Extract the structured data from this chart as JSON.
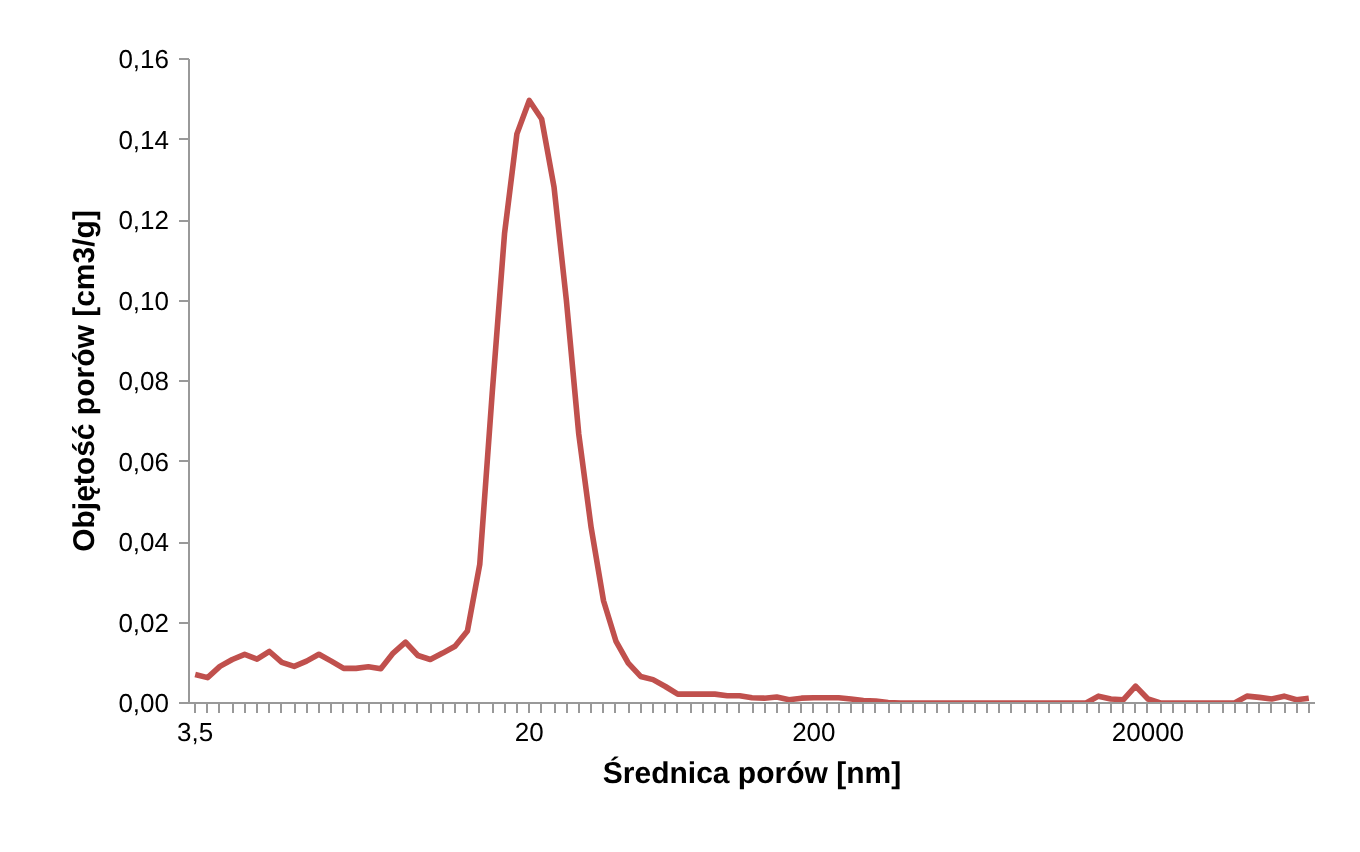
{
  "chart_data": {
    "type": "line",
    "xlabel": "Średnica porów [nm]",
    "ylabel": "Objętość porów [cm3/g]",
    "categories": [
      "3,5",
      null,
      null,
      null,
      null,
      null,
      null,
      null,
      null,
      null,
      null,
      null,
      null,
      null,
      null,
      null,
      null,
      null,
      null,
      null,
      null,
      null,
      null,
      null,
      null,
      null,
      null,
      "20",
      null,
      null,
      null,
      null,
      null,
      null,
      null,
      null,
      null,
      null,
      null,
      null,
      null,
      null,
      null,
      null,
      null,
      null,
      null,
      null,
      null,
      null,
      "200",
      null,
      null,
      null,
      null,
      null,
      null,
      null,
      null,
      null,
      null,
      null,
      null,
      null,
      null,
      null,
      null,
      null,
      null,
      null,
      null,
      null,
      null,
      null,
      null,
      null,
      null,
      "20000",
      null,
      null,
      null,
      null,
      null,
      null,
      null,
      null,
      null,
      null,
      null,
      null,
      null
    ],
    "series": [
      {
        "color": "#c0504d",
        "values": [
          0.0071,
          0.0063,
          0.0091,
          0.0108,
          0.0121,
          0.0109,
          0.0128,
          0.0101,
          0.0091,
          0.0104,
          0.0121,
          0.0104,
          0.0086,
          0.0086,
          0.009,
          0.0085,
          0.0124,
          0.0151,
          0.0118,
          0.0108,
          0.0124,
          0.0141,
          0.0179,
          0.0345,
          0.0768,
          0.1166,
          0.1414,
          0.1497,
          0.1451,
          0.1282,
          0.1,
          0.0668,
          0.0436,
          0.0254,
          0.0154,
          0.0099,
          0.0066,
          0.0058,
          0.0041,
          0.0022,
          0.0022,
          0.0022,
          0.0022,
          0.0018,
          0.0018,
          0.0013,
          0.0012,
          0.0015,
          0.0008,
          0.0012,
          0.0013,
          0.0013,
          0.0013,
          0.001,
          0.0006,
          0.0005,
          0.0001,
          0,
          0,
          0,
          0,
          0,
          0,
          0,
          0,
          0,
          0,
          0,
          0,
          0,
          0,
          0,
          0,
          0.0017,
          0.001,
          0.0008,
          0.0042,
          0.001,
          0,
          0,
          0,
          0,
          0,
          0,
          0,
          0.0017,
          0.0014,
          0.001,
          0.0017,
          0.0008,
          0.0012
        ]
      }
    ],
    "ylim": [
      0,
      0.16
    ],
    "yticks": [
      {
        "value": 0,
        "label": "0,00"
      },
      {
        "value": 0.02,
        "label": "0,02"
      },
      {
        "value": 0.04,
        "label": "0,04"
      },
      {
        "value": 0.06,
        "label": "0,06"
      },
      {
        "value": 0.08,
        "label": "0,08"
      },
      {
        "value": 0.1,
        "label": "0,10"
      },
      {
        "value": 0.12,
        "label": "0,12"
      },
      {
        "value": 0.14,
        "label": "0,14"
      },
      {
        "value": 0.16,
        "label": "0,16"
      }
    ],
    "grid": false,
    "marker": "none",
    "line_style": "solid"
  }
}
